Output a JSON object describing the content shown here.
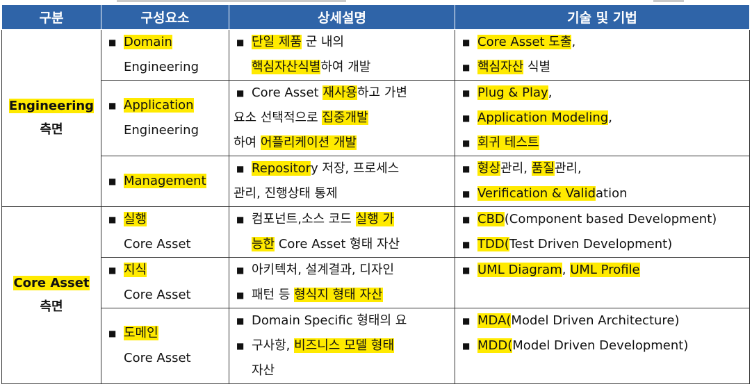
{
  "header": [
    "구분",
    "구성요소",
    "상세설명",
    "기술 및 기법"
  ],
  "colors": {
    "header_bg": "#2f64a8",
    "highlight": "#ffea00"
  },
  "groups": [
    {
      "label_line1": "Engineering",
      "label_line2": "측면",
      "rows": [
        {
          "component": "Domain",
          "component_sub": "Engineering",
          "detail": [
            {
              "a": "단일 제품",
              "b": " 군 내의"
            },
            {
              "a": "핵심자산식별",
              "b": "하여 개발"
            }
          ],
          "tech": [
            {
              "a": "Core Asset 도출",
              "b": ","
            },
            {
              "a": "핵심자산",
              "b": " 식별"
            }
          ]
        },
        {
          "component": "Application",
          "component_sub": "Engineering",
          "detail_line1": "Core Asset ",
          "detail_hl1": "재사용",
          "detail_line1b": "하고 가변",
          "detail_line2": "요소 선택적으로 ",
          "detail_hl2": "집중개발",
          "detail_line3": "하여 ",
          "detail_hl3": "어플리케이션 개발",
          "tech": [
            {
              "a": "Plug & Play",
              "b": ","
            },
            {
              "a": "Application Modeling",
              "b": ","
            },
            {
              "a": "회귀 테스트",
              "b": ""
            }
          ]
        },
        {
          "component": "Management",
          "detail_hl1": "Repositor",
          "detail_line1": "y 저장, 프로세스",
          "detail_line2": "관리, 진행상태 통제",
          "tech1_hl": "형상",
          "tech1_mid": "관리, ",
          "tech1_hl2": "품질",
          "tech1_end": "관리,",
          "tech2_hl": "Verification & Valid",
          "tech2_end": "ation"
        }
      ]
    },
    {
      "label_line1": "Core Asset",
      "label_line2": "측면",
      "rows": [
        {
          "component": "실행",
          "component_sub": "Core Asset",
          "detail_line1": "컴포넌트,소스 코드 ",
          "detail_hl1": "실행 가",
          "detail_hl2": "능한",
          "detail_line2": " Core Asset 형태 자산",
          "tech": [
            {
              "a": "CBD",
              "b": "(Component based Development)"
            },
            {
              "a": "TDD(",
              "b": "Test Driven Development)"
            }
          ]
        },
        {
          "component": "지식",
          "component_sub": "Core Asset",
          "detail_line1": "아키텍처, 설계결과, 디자인",
          "detail_line2": "패턴 등 ",
          "detail_hl2": "형식지 형태 자산",
          "tech_hl1": "UML Diagram",
          "tech_mid": ", ",
          "tech_hl2": "UML Profile"
        },
        {
          "component": "도메인",
          "component_sub": "Core Asset",
          "detail_line1": "Domain Specific 형태의 요",
          "detail_line2a": "구사항, ",
          "detail_hl2": "비즈니스 모델 형태",
          "detail_line3": "자산",
          "tech": [
            {
              "a": "MDA(",
              "b": "Model Driven Architecture)"
            },
            {
              "a": "MDD(",
              "b": "Model Driven Development)"
            }
          ]
        }
      ]
    }
  ]
}
